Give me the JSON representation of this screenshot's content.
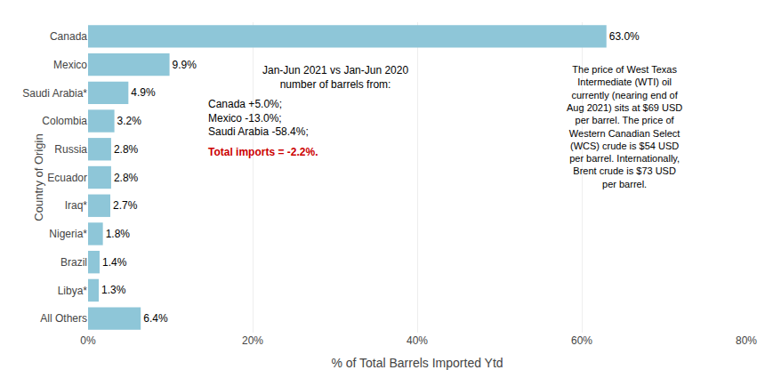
{
  "chart_data": {
    "type": "bar",
    "orientation": "horizontal",
    "categories": [
      "All Others",
      "Libya*",
      "Brazil",
      "Nigeria*",
      "Iraq*",
      "Ecuador",
      "Russia",
      "Colombia",
      "Saudi Arabia*",
      "Mexico",
      "Canada"
    ],
    "values": [
      6.4,
      1.3,
      1.4,
      1.8,
      2.7,
      2.8,
      2.8,
      3.2,
      4.9,
      9.9,
      63.0
    ],
    "value_labels": [
      "6.4%",
      "1.3%",
      "1.4%",
      "1.8%",
      "2.7%",
      "2.8%",
      "2.8%",
      "3.2%",
      "4.9%",
      "9.9%",
      "63.0%"
    ],
    "data_labels": true,
    "color": "#8ec6d8",
    "xlabel": "% of Total Barrels Imported Ytd",
    "ylabel": "Country of Origin",
    "xlim": [
      0,
      80
    ],
    "xticks": [
      {
        "value": 0,
        "label": "0%"
      },
      {
        "value": 20,
        "label": "20%"
      },
      {
        "value": 40,
        "label": "40%"
      },
      {
        "value": 60,
        "label": "60%"
      },
      {
        "value": 80,
        "label": "80%"
      }
    ],
    "grid": true,
    "annotations": [
      {
        "text": "Jan-Jun 2021 vs Jan-Jun 2020\nnumber of barrels from:"
      },
      {
        "text": "Canada +5.0%;\nMexico -13.0%;\nSaudi Arabia -58.4%;"
      },
      {
        "text": "Total imports = -2.2%.",
        "color": "#cc0000"
      },
      {
        "text": "The price of West Texas\nIntermediate (WTI) oil\ncurrently (nearing end of\nAug 2021) sits at $69 USD\nper barrel. The price of\nWestern Canadian Select\n(WCS) crude is $54 USD\nper barrel. Internationally,\nBrent crude is $73 USD\nper barrel."
      }
    ]
  }
}
